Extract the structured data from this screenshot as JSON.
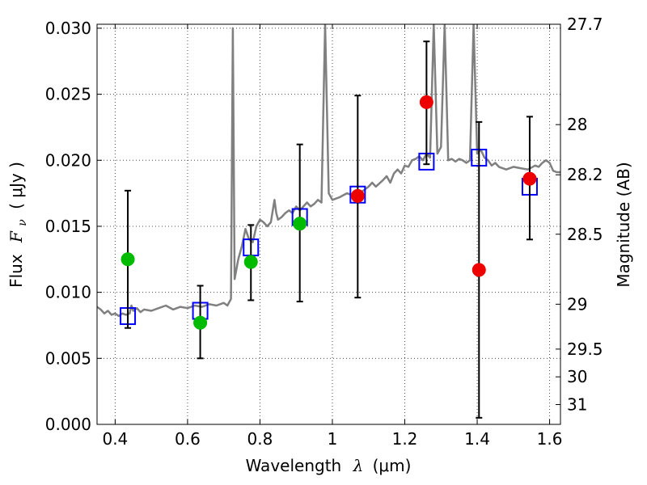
{
  "chart_data": {
    "type": "scatter",
    "xlabel": "Wavelength",
    "xlabel_symbol": "λ",
    "xlabel_unit": "(μm)",
    "ylabel": "Flux",
    "ylabel_symbol": "F",
    "ylabel_subscript": "ν",
    "ylabel_unit": "( μJy )",
    "y2label": "Magnitude (AB)",
    "xlim": [
      0.35,
      1.63
    ],
    "ylim": [
      0.0,
      0.0303
    ],
    "grid": true,
    "x_ticks": [
      0.4,
      0.6,
      0.8,
      1.0,
      1.2,
      1.4,
      1.6
    ],
    "x_tick_labels": [
      "0.4",
      "0.6",
      "0.8",
      "1",
      "1.2",
      "1.4",
      "1.6"
    ],
    "y_ticks": [
      0.0,
      0.005,
      0.01,
      0.015,
      0.02,
      0.025,
      0.03
    ],
    "y_tick_labels": [
      "0.000",
      "0.005",
      "0.010",
      "0.015",
      "0.020",
      "0.025",
      "0.030"
    ],
    "y2_ticks": [
      {
        "label": "27.7",
        "flux": 0.0303
      },
      {
        "label": "28",
        "flux": 0.0227
      },
      {
        "label": "28.2",
        "flux": 0.0189
      },
      {
        "label": "28.5",
        "flux": 0.0144
      },
      {
        "label": "29",
        "flux": 0.0091
      },
      {
        "label": "29.5",
        "flux": 0.0057
      },
      {
        "label": "30",
        "flux": 0.0036
      },
      {
        "label": "31",
        "flux": 0.0015
      }
    ],
    "series": [
      {
        "color": "#808080",
        "marker": "line",
        "points": [
          [
            0.35,
            0.0089
          ],
          [
            0.36,
            0.0087
          ],
          [
            0.37,
            0.0084
          ],
          [
            0.38,
            0.0086
          ],
          [
            0.39,
            0.0083
          ],
          [
            0.4,
            0.0084
          ],
          [
            0.41,
            0.0082
          ],
          [
            0.42,
            0.0084
          ],
          [
            0.43,
            0.0083
          ],
          [
            0.44,
            0.0084
          ],
          [
            0.445,
            0.009
          ],
          [
            0.45,
            0.0086
          ],
          [
            0.46,
            0.0088
          ],
          [
            0.47,
            0.0085
          ],
          [
            0.48,
            0.0087
          ],
          [
            0.5,
            0.0086
          ],
          [
            0.52,
            0.0088
          ],
          [
            0.54,
            0.009
          ],
          [
            0.56,
            0.0087
          ],
          [
            0.58,
            0.0089
          ],
          [
            0.6,
            0.0088
          ],
          [
            0.62,
            0.009
          ],
          [
            0.64,
            0.0089
          ],
          [
            0.66,
            0.0091
          ],
          [
            0.68,
            0.009
          ],
          [
            0.7,
            0.0092
          ],
          [
            0.71,
            0.009
          ],
          [
            0.72,
            0.0095
          ],
          [
            0.725,
            0.03
          ],
          [
            0.73,
            0.011
          ],
          [
            0.74,
            0.0125
          ],
          [
            0.75,
            0.0135
          ],
          [
            0.76,
            0.0148
          ],
          [
            0.77,
            0.014
          ],
          [
            0.78,
            0.0138
          ],
          [
            0.79,
            0.015
          ],
          [
            0.8,
            0.0155
          ],
          [
            0.81,
            0.0153
          ],
          [
            0.82,
            0.015
          ],
          [
            0.83,
            0.0153
          ],
          [
            0.84,
            0.017
          ],
          [
            0.845,
            0.016
          ],
          [
            0.85,
            0.0155
          ],
          [
            0.86,
            0.0157
          ],
          [
            0.87,
            0.016
          ],
          [
            0.88,
            0.0162
          ],
          [
            0.89,
            0.016
          ],
          [
            0.9,
            0.0165
          ],
          [
            0.91,
            0.0162
          ],
          [
            0.92,
            0.0165
          ],
          [
            0.93,
            0.0168
          ],
          [
            0.94,
            0.0165
          ],
          [
            0.95,
            0.0167
          ],
          [
            0.96,
            0.017
          ],
          [
            0.97,
            0.0168
          ],
          [
            0.98,
            0.0303
          ],
          [
            0.99,
            0.0175
          ],
          [
            1.0,
            0.017
          ],
          [
            1.02,
            0.0172
          ],
          [
            1.04,
            0.0175
          ],
          [
            1.06,
            0.0173
          ],
          [
            1.08,
            0.0176
          ],
          [
            1.09,
            0.0178
          ],
          [
            1.1,
            0.018
          ],
          [
            1.11,
            0.0183
          ],
          [
            1.12,
            0.018
          ],
          [
            1.14,
            0.0185
          ],
          [
            1.15,
            0.0188
          ],
          [
            1.16,
            0.0183
          ],
          [
            1.17,
            0.019
          ],
          [
            1.18,
            0.0193
          ],
          [
            1.19,
            0.019
          ],
          [
            1.2,
            0.0196
          ],
          [
            1.21,
            0.0195
          ],
          [
            1.22,
            0.02
          ],
          [
            1.23,
            0.0201
          ],
          [
            1.24,
            0.0203
          ],
          [
            1.25,
            0.02
          ],
          [
            1.26,
            0.0205
          ],
          [
            1.27,
            0.0202
          ],
          [
            1.28,
            0.0303
          ],
          [
            1.29,
            0.0205
          ],
          [
            1.3,
            0.021
          ],
          [
            1.31,
            0.0303
          ],
          [
            1.32,
            0.02
          ],
          [
            1.33,
            0.0201
          ],
          [
            1.34,
            0.0199
          ],
          [
            1.35,
            0.0201
          ],
          [
            1.36,
            0.02
          ],
          [
            1.37,
            0.0198
          ],
          [
            1.38,
            0.02
          ],
          [
            1.39,
            0.0303
          ],
          [
            1.4,
            0.0205
          ],
          [
            1.41,
            0.0208
          ],
          [
            1.42,
            0.0202
          ],
          [
            1.43,
            0.02
          ],
          [
            1.44,
            0.0196
          ],
          [
            1.45,
            0.0198
          ],
          [
            1.46,
            0.0195
          ],
          [
            1.48,
            0.0193
          ],
          [
            1.5,
            0.0195
          ],
          [
            1.52,
            0.0194
          ],
          [
            1.54,
            0.0193
          ],
          [
            1.56,
            0.0196
          ],
          [
            1.57,
            0.0195
          ],
          [
            1.58,
            0.0198
          ],
          [
            1.59,
            0.02
          ],
          [
            1.6,
            0.0198
          ],
          [
            1.61,
            0.0192
          ],
          [
            1.62,
            0.0191
          ],
          [
            1.63,
            0.0191
          ]
        ]
      },
      {
        "color": "#0000ff",
        "marker": "open-square",
        "points": [
          [
            0.435,
            0.0082
          ],
          [
            0.635,
            0.0086
          ],
          [
            0.775,
            0.0134
          ],
          [
            0.91,
            0.0157
          ],
          [
            1.07,
            0.0174
          ],
          [
            1.26,
            0.0199
          ],
          [
            1.405,
            0.0202
          ],
          [
            1.545,
            0.018
          ]
        ]
      },
      {
        "color": "#00bb00",
        "marker": "filled-circle",
        "points": [
          [
            0.435,
            0.0125
          ],
          [
            0.635,
            0.0077
          ],
          [
            0.775,
            0.0123
          ],
          [
            0.91,
            0.0152
          ]
        ],
        "error_bars": [
          [
            0.0073,
            0.0177
          ],
          [
            0.005,
            0.0105
          ],
          [
            0.0094,
            0.0151
          ],
          [
            0.0093,
            0.0212
          ]
        ]
      },
      {
        "color": "#ee0000",
        "marker": "filled-circle",
        "points": [
          [
            1.07,
            0.0173
          ],
          [
            1.26,
            0.0244
          ],
          [
            1.405,
            0.0117
          ],
          [
            1.545,
            0.0186
          ]
        ],
        "error_bars": [
          [
            0.0096,
            0.0249
          ],
          [
            0.0197,
            0.029
          ],
          [
            0.0005,
            0.0229
          ],
          [
            0.014,
            0.0233
          ]
        ]
      }
    ]
  }
}
